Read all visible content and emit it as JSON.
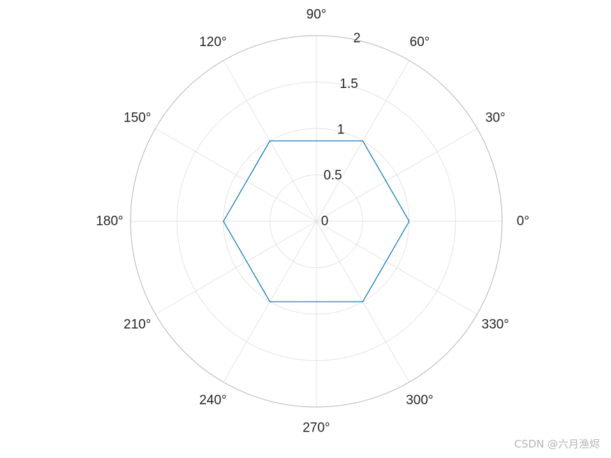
{
  "chart_data": {
    "type": "polar-line",
    "title": "",
    "theta_unit": "degrees",
    "theta_ticks": [
      0,
      30,
      60,
      90,
      120,
      150,
      180,
      210,
      240,
      270,
      300,
      330
    ],
    "theta_tick_labels": [
      "0°",
      "30°",
      "60°",
      "90°",
      "120°",
      "150°",
      "180°",
      "210°",
      "240°",
      "270°",
      "300°",
      "330°"
    ],
    "rlim": [
      0,
      2
    ],
    "r_ticks": [
      0,
      0.5,
      1,
      1.5,
      2
    ],
    "r_tick_labels": [
      "0",
      "0.5",
      "1",
      "1.5",
      "2"
    ],
    "r_tick_label_angle": 80,
    "grid": true,
    "line_color": "#0072BD",
    "grid_color": "#e3e3e3",
    "series": [
      {
        "theta": [
          0,
          60,
          120,
          180,
          240,
          300,
          360
        ],
        "r": [
          1,
          1,
          1,
          1,
          1,
          1,
          1
        ]
      }
    ]
  },
  "watermark": {
    "text": "CSDN @六月渔烬"
  }
}
